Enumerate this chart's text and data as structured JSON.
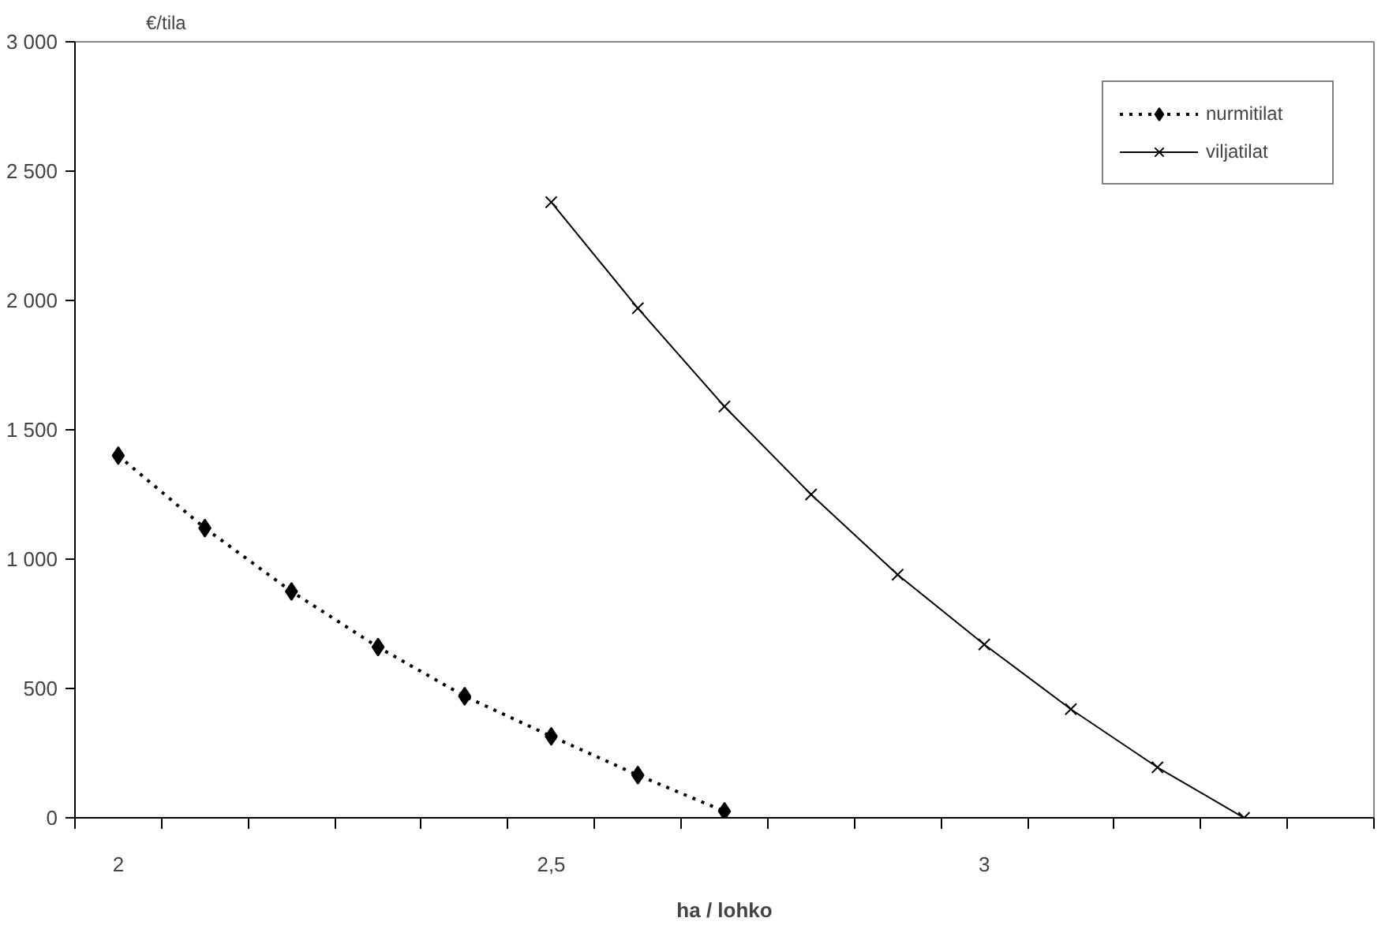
{
  "chart_data": {
    "type": "line",
    "xlabel": "ha / lohko",
    "ylabel": "€/tila",
    "categories": [
      "2",
      null,
      null,
      null,
      null,
      "2,5",
      null,
      null,
      null,
      null,
      "3",
      null,
      null,
      null,
      null
    ],
    "series": [
      {
        "name": "nurmitilat",
        "color": "#000000",
        "marker": "diamond",
        "line_style": "dotted",
        "values": [
          1400,
          1120,
          875,
          660,
          470,
          315,
          165,
          25,
          null,
          null,
          null,
          null,
          null,
          null,
          null
        ]
      },
      {
        "name": "viljatilat",
        "color": "#000000",
        "marker": "cross",
        "line_style": "solid",
        "values": [
          null,
          null,
          null,
          null,
          null,
          2380,
          1970,
          1590,
          1250,
          940,
          670,
          420,
          195,
          0,
          null
        ]
      }
    ],
    "ylim": [
      0,
      3000
    ],
    "yticks": [
      0,
      500,
      {
        "value": 1000,
        "label": "1 000"
      },
      {
        "value": 1500,
        "label": "1 500"
      },
      {
        "value": 2000,
        "label": "2 000"
      },
      {
        "value": 2500,
        "label": "2 500"
      },
      {
        "value": 3000,
        "label": "3 000"
      }
    ],
    "grid": false,
    "legend": "top right"
  }
}
